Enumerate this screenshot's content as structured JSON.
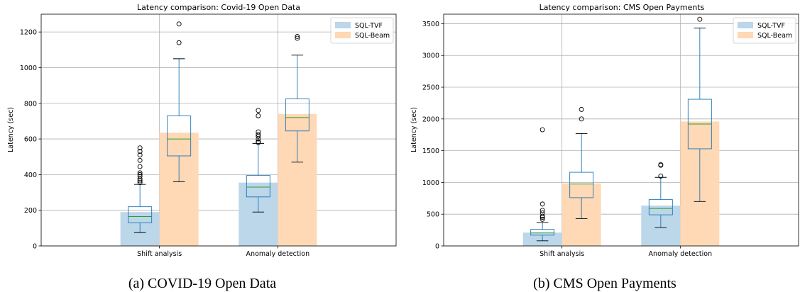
{
  "chart_data": [
    {
      "type": "bar",
      "title": "Latency comparison: Covid-19 Open Data",
      "caption": "(a) COVID-19 Open Data",
      "xlabel": "",
      "ylabel": "Latency (sec)",
      "ylim": [
        0,
        1300
      ],
      "yticks": [
        0,
        200,
        400,
        600,
        800,
        1000,
        1200
      ],
      "categories": [
        "Shift analysis",
        "Anomaly detection"
      ],
      "grid": true,
      "legend": "top-right",
      "series": [
        {
          "name": "SQL-TVF",
          "color": "#bcd6ea",
          "values": [
            190,
            355
          ],
          "boxes": [
            {
              "q1": 130,
              "median": 165,
              "q3": 220,
              "whisker_low": 75,
              "whisker_high": 345,
              "outliers": [
                355,
                365,
                375,
                390,
                400,
                410,
                445,
                480,
                510,
                530,
                550
              ]
            },
            {
              "q1": 275,
              "median": 330,
              "q3": 395,
              "whisker_low": 190,
              "whisker_high": 575,
              "outliers": [
                580,
                585,
                600,
                615,
                625,
                640,
                730,
                760
              ]
            }
          ]
        },
        {
          "name": "SQL-Beam",
          "color": "#ffd8b5",
          "values": [
            635,
            740
          ],
          "boxes": [
            {
              "q1": 505,
              "median": 600,
              "q3": 730,
              "whisker_low": 360,
              "whisker_high": 1050,
              "outliers": [
                1140,
                1245
              ]
            },
            {
              "q1": 645,
              "median": 720,
              "q3": 825,
              "whisker_low": 470,
              "whisker_high": 1070,
              "outliers": [
                1165,
                1175
              ]
            }
          ]
        }
      ]
    },
    {
      "type": "bar",
      "title": "Latency comparison: CMS Open Payments",
      "caption": "(b) CMS Open Payments",
      "xlabel": "",
      "ylabel": "Latency (sec)",
      "ylim": [
        0,
        3650
      ],
      "yticks": [
        0,
        500,
        1000,
        1500,
        2000,
        2500,
        3000,
        3500
      ],
      "categories": [
        "Shift analysis",
        "Anomaly detection"
      ],
      "grid": true,
      "legend": "top-right",
      "series": [
        {
          "name": "SQL-TVF",
          "color": "#bcd6ea",
          "values": [
            210,
            635
          ],
          "boxes": [
            {
              "q1": 170,
              "median": 205,
              "q3": 260,
              "whisker_low": 80,
              "whisker_high": 370,
              "outliers": [
                420,
                450,
                470,
                520,
                560,
                660,
                1830
              ]
            },
            {
              "q1": 490,
              "median": 590,
              "q3": 730,
              "whisker_low": 290,
              "whisker_high": 1080,
              "outliers": [
                1100,
                1270,
                1280
              ]
            }
          ]
        },
        {
          "name": "SQL-Beam",
          "color": "#ffd8b5",
          "values": [
            985,
            1960
          ],
          "boxes": [
            {
              "q1": 760,
              "median": 975,
              "q3": 1160,
              "whisker_low": 430,
              "whisker_high": 1770,
              "outliers": [
                2000,
                2150
              ]
            },
            {
              "q1": 1530,
              "median": 1920,
              "q3": 2310,
              "whisker_low": 700,
              "whisker_high": 3430,
              "outliers": [
                3570
              ]
            }
          ]
        }
      ]
    }
  ]
}
